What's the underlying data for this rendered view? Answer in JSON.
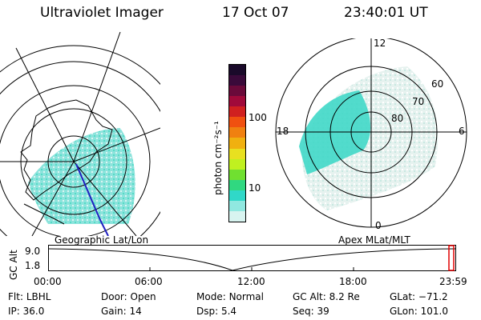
{
  "header": {
    "instrument": "Ultraviolet Imager",
    "date": "17 Oct 07",
    "time": "23:40:01 UT"
  },
  "colorbar": {
    "label": "photon cm⁻²s⁻¹",
    "ticks": [
      "100",
      "10"
    ],
    "colors": [
      "#1a0a2a",
      "#3a0a3a",
      "#6a0a3a",
      "#a00a3a",
      "#d02020",
      "#f05010",
      "#f08010",
      "#f0b010",
      "#e8e020",
      "#c0f020",
      "#70e030",
      "#30d880",
      "#30d8c8",
      "#90e8e0",
      "#d8f4f0"
    ]
  },
  "left_map": {
    "label": "Geographic Lat/Lon"
  },
  "right_map": {
    "label": "Apex MLat/MLT",
    "mlt_labels": {
      "top": "12",
      "left": "18",
      "right": "6",
      "bottom": "0"
    },
    "lat_labels": [
      "60",
      "70",
      "80"
    ]
  },
  "timeline": {
    "y_axis_title": "GC Alt",
    "y_ticks": [
      "9.0",
      "1.8"
    ],
    "x_ticks": [
      "00:00",
      "06:00",
      "12:00",
      "18:00",
      "23:59"
    ],
    "marker_color": "#e00000"
  },
  "status": {
    "row1": [
      {
        "label": "Flt:",
        "value": "LBHL"
      },
      {
        "label": "Door:",
        "value": "Open"
      },
      {
        "label": "Mode:",
        "value": "Normal"
      },
      {
        "label": "GC Alt:",
        "value": "8.2 Re"
      },
      {
        "label": "GLat:",
        "value": "−71.2"
      }
    ],
    "row2": [
      {
        "label": "IP:",
        "value": "36.0"
      },
      {
        "label": "Gain:",
        "value": "14"
      },
      {
        "label": "Dsp:",
        "value": "5.4"
      },
      {
        "label": "Seq:",
        "value": "39"
      },
      {
        "label": "GLon:",
        "value": "101.0"
      }
    ]
  }
}
